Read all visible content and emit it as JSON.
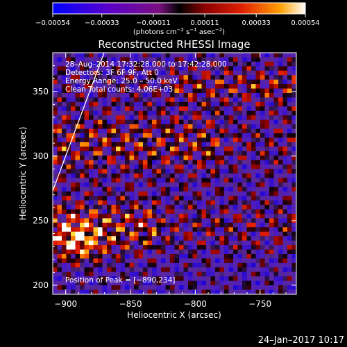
{
  "chart_data": {
    "type": "heatmap",
    "title": "Reconstructed RHESSI Image",
    "xlabel": "Heliocentric X (arcsec)",
    "ylabel": "Heliocentric Y (arcsec)",
    "xlim": [
      -910,
      -722
    ],
    "ylim": [
      193,
      380
    ],
    "x_ticks": [
      -900,
      -850,
      -800,
      -750
    ],
    "x_tick_labels": [
      "−900",
      "−850",
      "−800",
      "−750"
    ],
    "y_ticks": [
      200,
      250,
      300,
      350
    ],
    "y_tick_labels": [
      "200",
      "250",
      "300",
      "350"
    ],
    "colorbar": {
      "range": [
        -0.00054,
        0.00054
      ],
      "ticks": [
        -0.00054,
        -0.00033,
        -0.00011,
        0.00011,
        0.00033,
        0.00054
      ],
      "tick_labels": [
        "−0.00054",
        "−0.00033",
        "−0.00011",
        "0.00011",
        "0.00033",
        "0.00054"
      ],
      "unit_main": "(photons cm",
      "unit_sup1": "−2",
      "unit_mid1": " s",
      "unit_sup2": "−1",
      "unit_mid2": " asec",
      "unit_sup3": "−2",
      "unit_end": ")"
    },
    "annotations": [
      "28–Aug–2014 17:32:28.000 to 17:42:28.000",
      "Detectors: 3F 6F 9F, Att 0",
      "Energy Range: 25.0 – 50.0 keV",
      "Clean   Total counts: 4.06E+03"
    ],
    "peak_label": "Position of Peak = [−890,234]",
    "peak": [
      -890,
      234
    ],
    "grid": false,
    "limb": true
  },
  "footer": {
    "date": "24–Jan–2017 10:17"
  }
}
